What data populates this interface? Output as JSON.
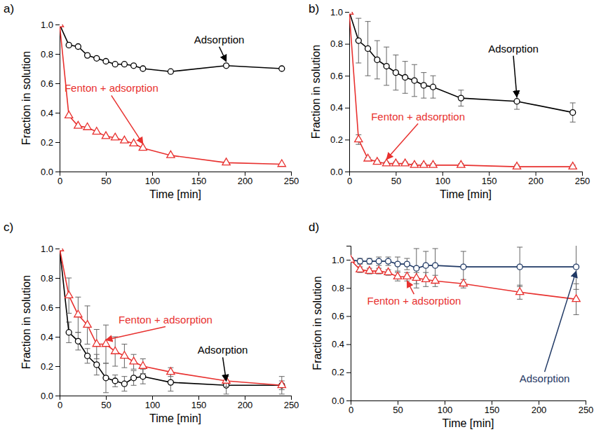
{
  "chart_data": [
    {
      "type": "line",
      "title": "a)",
      "x_label": "Time [min]",
      "y_label": "Fraction in solution",
      "x": [
        0,
        10,
        20,
        30,
        40,
        50,
        60,
        70,
        80,
        90,
        120,
        180,
        240
      ],
      "xlim": [
        0,
        250
      ],
      "xticks": [
        0,
        50,
        100,
        150,
        200,
        250
      ],
      "ylim": [
        0,
        1
      ],
      "yticks": [
        {
          "value": 0,
          "label": "0.0"
        },
        0.2,
        0.4,
        0.6,
        0.8,
        {
          "value": 1,
          "label": "1.0"
        }
      ],
      "series": [
        {
          "name": "Adsorption",
          "color": "#000000",
          "marker": "circle",
          "values": [
            1.0,
            0.86,
            0.85,
            0.79,
            0.77,
            0.75,
            0.73,
            0.73,
            0.72,
            0.7,
            0.68,
            0.72,
            0.7
          ]
        },
        {
          "name": "Fenton + adsorption",
          "color": "#e8312f",
          "marker": "triangle",
          "values": [
            1.0,
            0.38,
            0.31,
            0.3,
            0.27,
            0.24,
            0.23,
            0.21,
            0.19,
            0.16,
            0.11,
            0.06,
            0.05
          ]
        }
      ]
    },
    {
      "type": "line",
      "title": "b)",
      "x_label": "Time [min]",
      "y_label": "Fraction in solution",
      "x": [
        0,
        10,
        20,
        30,
        40,
        50,
        60,
        70,
        80,
        90,
        120,
        180,
        240
      ],
      "xlim": [
        0,
        250
      ],
      "xticks": [
        0,
        50,
        100,
        150,
        200,
        250
      ],
      "ylim": [
        0,
        1
      ],
      "yticks": [
        {
          "value": 0,
          "label": "0.0"
        },
        0.2,
        0.4,
        0.6,
        0.8,
        {
          "value": 1,
          "label": "1.0"
        }
      ],
      "series": [
        {
          "name": "Adsorption",
          "color": "#000000",
          "marker": "circle",
          "values": [
            1.0,
            0.82,
            0.77,
            0.7,
            0.66,
            0.62,
            0.59,
            0.57,
            0.54,
            0.53,
            0.46,
            0.44,
            0.37
          ],
          "errors": [
            0,
            0.14,
            0.17,
            0.12,
            0.12,
            0.11,
            0.1,
            0.1,
            0.08,
            0.07,
            0.05,
            0.05,
            0.06
          ]
        },
        {
          "name": "Fenton + adsorption",
          "color": "#e8312f",
          "marker": "triangle",
          "values": [
            1.0,
            0.2,
            0.08,
            0.06,
            0.05,
            0.05,
            0.05,
            0.04,
            0.04,
            0.04,
            0.04,
            0.03,
            0.03
          ],
          "errors": [
            0,
            0.03,
            0.01,
            0.01,
            0.01,
            0.01,
            0.01,
            0.01,
            0.01,
            0.01,
            0.01,
            0.01,
            0.01
          ]
        }
      ]
    },
    {
      "type": "line",
      "title": "c)",
      "x_label": "Time [min]",
      "y_label": "Fraction in solution",
      "x": [
        0,
        10,
        20,
        30,
        40,
        50,
        60,
        70,
        80,
        90,
        120,
        180,
        240
      ],
      "xlim": [
        0,
        250
      ],
      "xticks": [
        0,
        50,
        100,
        150,
        200,
        250
      ],
      "ylim": [
        0,
        1
      ],
      "yticks": [
        {
          "value": 0,
          "label": "0.0"
        },
        0.2,
        0.4,
        0.6,
        0.8,
        {
          "value": 1,
          "label": "1.0"
        }
      ],
      "series": [
        {
          "name": "Adsorption",
          "color": "#000000",
          "marker": "circle",
          "values": [
            1.0,
            0.43,
            0.37,
            0.27,
            0.21,
            0.12,
            0.1,
            0.08,
            0.12,
            0.13,
            0.09,
            0.07,
            0.07
          ],
          "errors": [
            0,
            0.07,
            0.06,
            0.05,
            0.07,
            0.1,
            0.04,
            0.05,
            0.05,
            0.05,
            0.06,
            0.06,
            0.06
          ]
        },
        {
          "name": "Fenton + adsorption",
          "color": "#e8312f",
          "marker": "triangle",
          "values": [
            1.0,
            0.68,
            0.55,
            0.48,
            0.35,
            0.35,
            0.3,
            0.27,
            0.23,
            0.2,
            0.16,
            0.1,
            0.07
          ],
          "errors": [
            0,
            0.12,
            0.12,
            0.13,
            0.1,
            0.13,
            0.1,
            0.08,
            0.05,
            0.05,
            0.03,
            0.04,
            0.03
          ]
        }
      ]
    },
    {
      "type": "line",
      "title": "d)",
      "x_label": "Time [min]",
      "y_label": "Fraction in solution",
      "x": [
        0,
        10,
        20,
        30,
        40,
        50,
        60,
        70,
        80,
        90,
        120,
        180,
        240
      ],
      "xlim": [
        0,
        250
      ],
      "xticks": [
        0,
        50,
        100,
        150,
        200,
        250
      ],
      "ylim": [
        0,
        1.1
      ],
      "yticks": [
        {
          "value": 0,
          "label": "0.0"
        },
        0.2,
        0.4,
        0.6,
        0.8,
        {
          "value": 1,
          "label": "1.0"
        }
      ],
      "series": [
        {
          "name": "Adsorption",
          "color": "#1f3864",
          "marker": "circle",
          "values": [
            1.0,
            0.99,
            0.99,
            0.99,
            0.99,
            0.97,
            0.97,
            0.94,
            0.96,
            0.96,
            0.95,
            0.95,
            0.95
          ],
          "errors": [
            0,
            0.02,
            0.02,
            0.03,
            0.03,
            0.05,
            0.04,
            0.14,
            0.1,
            0.12,
            0.11,
            0.14,
            0.16
          ]
        },
        {
          "name": "Fenton + adsorption",
          "color": "#e8312f",
          "marker": "triangle",
          "values": [
            1.0,
            0.93,
            0.92,
            0.92,
            0.91,
            0.88,
            0.88,
            0.87,
            0.86,
            0.85,
            0.83,
            0.77,
            0.72
          ],
          "errors": [
            0,
            0.02,
            0.02,
            0.02,
            0.02,
            0.03,
            0.03,
            0.04,
            0.05,
            0.04,
            0.03,
            0.05,
            0.11
          ]
        }
      ]
    }
  ]
}
